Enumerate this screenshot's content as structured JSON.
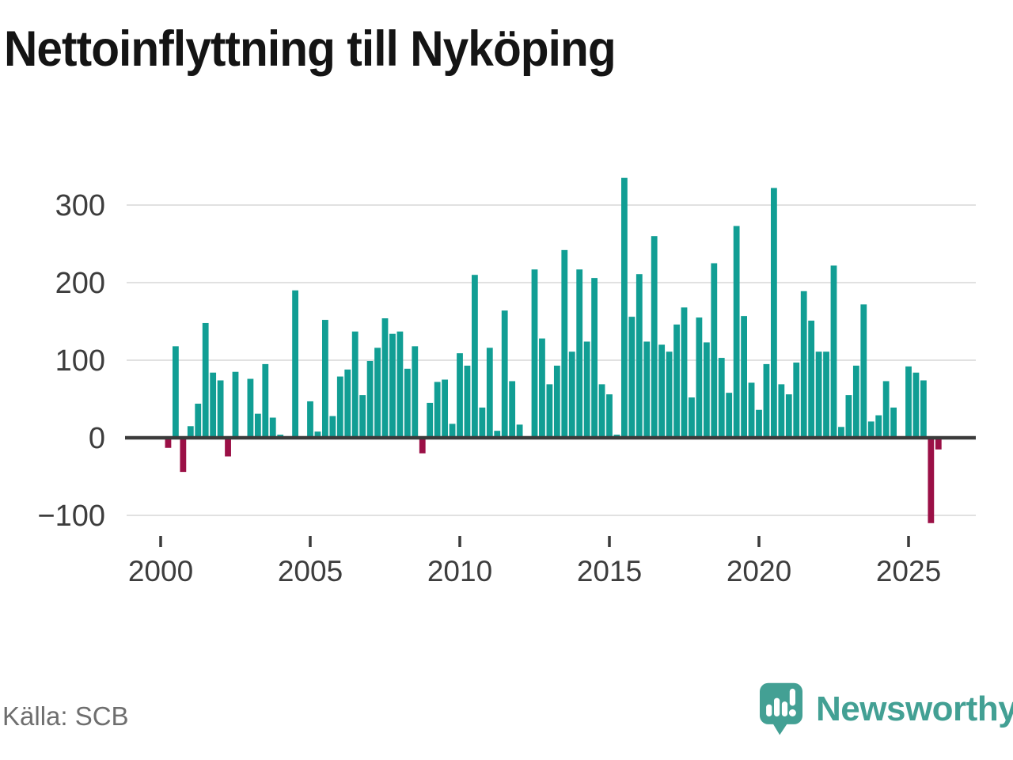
{
  "chart_data": {
    "type": "bar",
    "title": "Nettoinflyttning till Nyköping",
    "frequency": "quarterly",
    "start_period": "2000-Q2",
    "values": [
      -13,
      118,
      -44,
      15,
      44,
      148,
      84,
      74,
      -24,
      85,
      0,
      76,
      31,
      95,
      26,
      4,
      0,
      190,
      0,
      47,
      8,
      152,
      28,
      79,
      88,
      137,
      55,
      99,
      116,
      154,
      134,
      137,
      89,
      118,
      -20,
      45,
      72,
      75,
      18,
      109,
      93,
      210,
      39,
      116,
      9,
      164,
      73,
      17,
      0,
      217,
      128,
      69,
      93,
      242,
      111,
      217,
      124,
      206,
      69,
      56,
      4,
      335,
      156,
      211,
      124,
      260,
      120,
      111,
      146,
      168,
      52,
      155,
      123,
      225,
      103,
      58,
      273,
      157,
      71,
      36,
      95,
      322,
      69,
      56,
      97,
      189,
      151,
      111,
      111,
      222,
      14,
      55,
      93,
      172,
      21,
      29,
      73,
      39,
      0,
      92,
      84,
      74,
      -110,
      -15
    ],
    "yticks": [
      -100,
      0,
      100,
      200,
      300
    ],
    "xticks": [
      2000,
      2005,
      2010,
      2015,
      2020,
      2025
    ],
    "ylim": [
      -130,
      350
    ],
    "grid": "horizontal",
    "positive_color": "#119e94",
    "negative_color": "#9b1046"
  },
  "footer": {
    "source": "Källa: SCB",
    "brand": "Newsworthy"
  }
}
